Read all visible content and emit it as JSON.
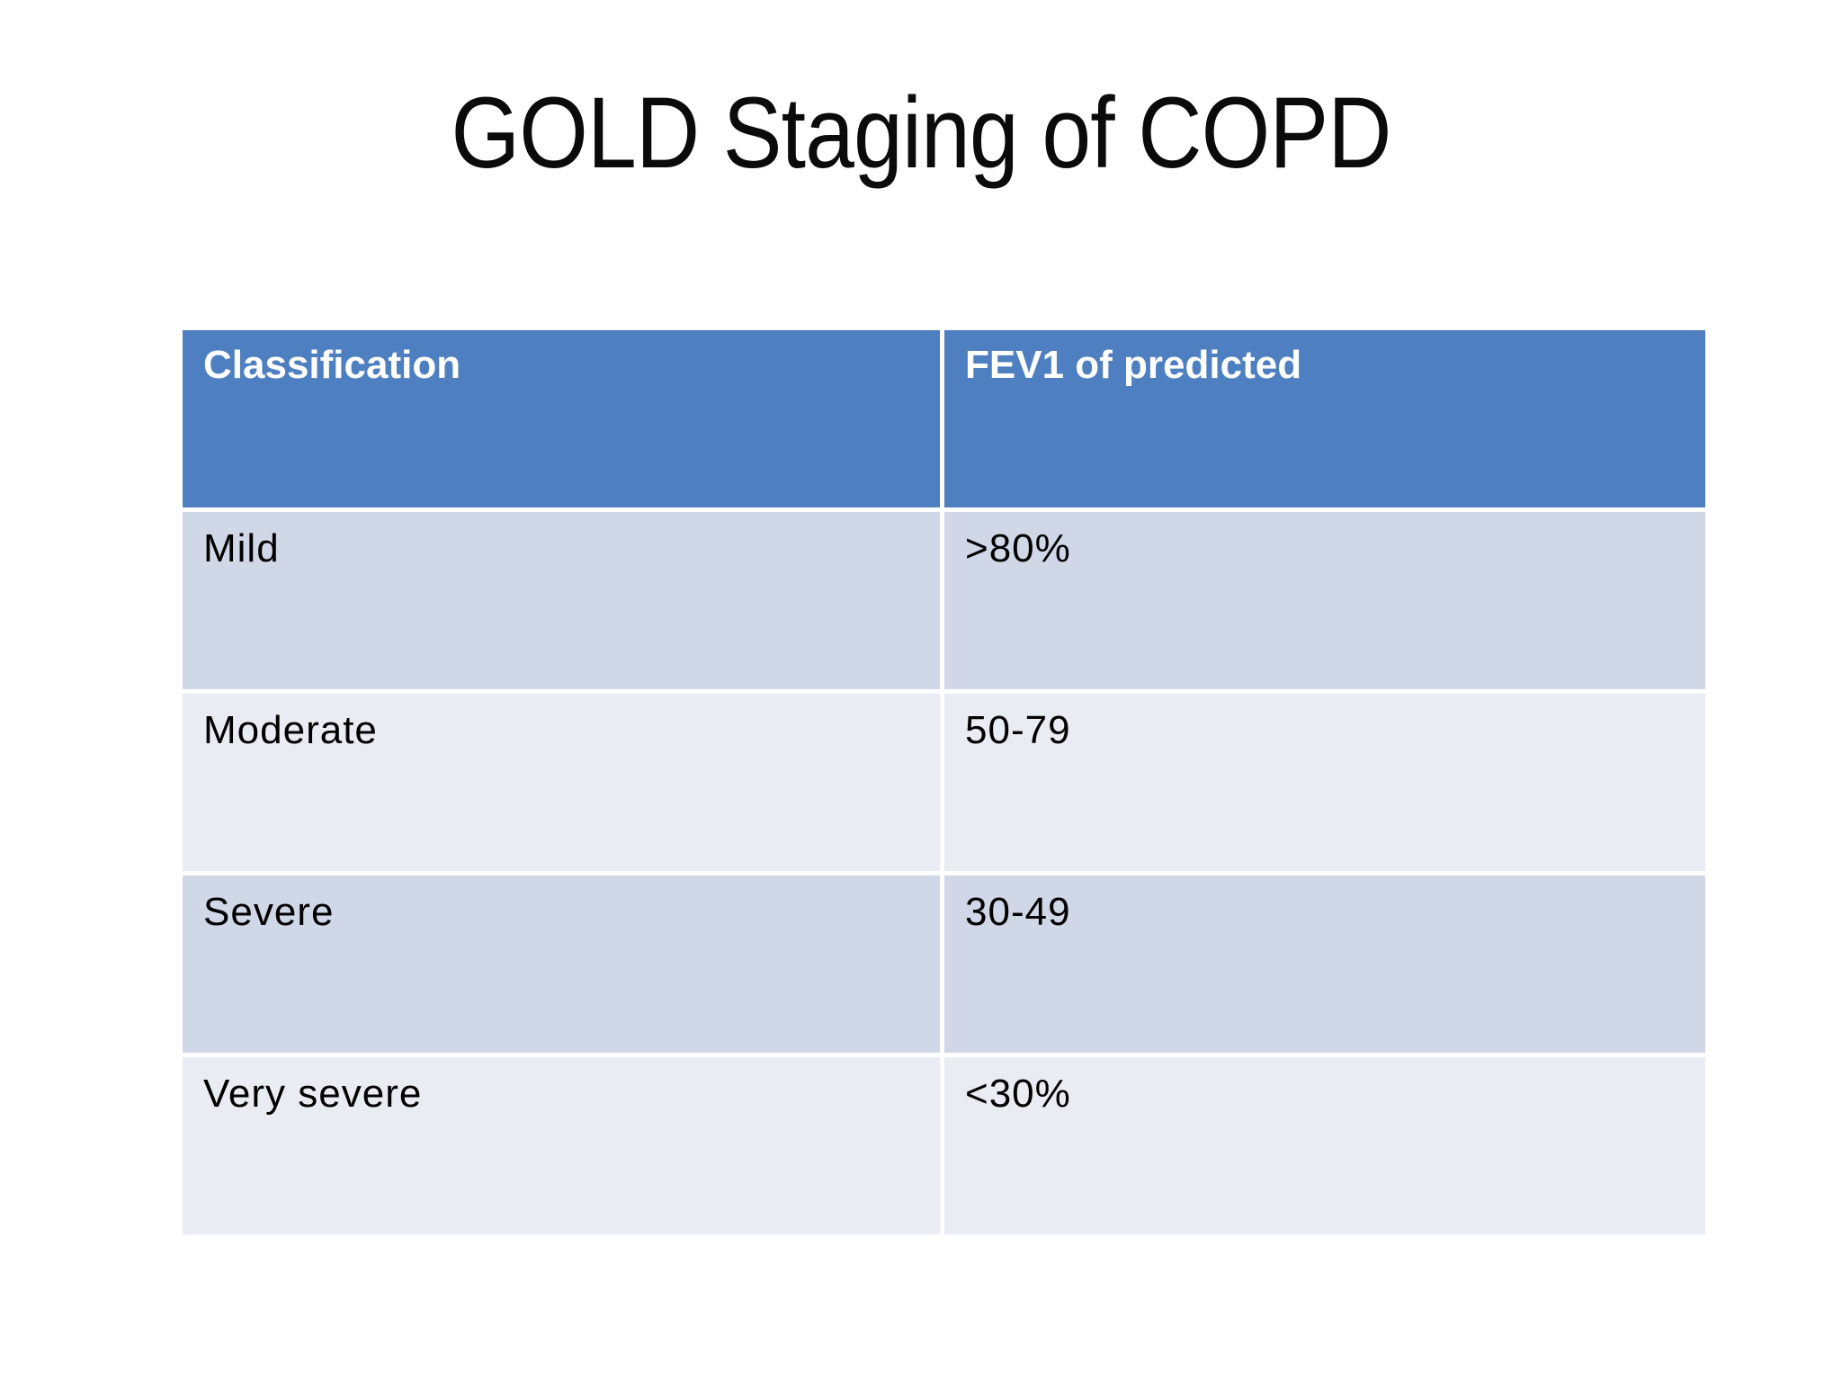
{
  "title": "GOLD Staging of COPD",
  "table": {
    "headers": [
      "Classification",
      "FEV1 of predicted"
    ],
    "rows": [
      [
        "Mild",
        ">80%"
      ],
      [
        "Moderate",
        "50-79"
      ],
      [
        "Severe",
        "30-49"
      ],
      [
        "Very severe",
        "<30%"
      ]
    ]
  },
  "colors": {
    "background": "#ffffff",
    "title_text": "#0b0b0b",
    "header_bg": "#4e7fc0",
    "header_text": "#ffffff",
    "row_band_dark": "#d0d7e7",
    "row_band_light": "#e9ecf3",
    "body_text": "#000000",
    "grid_line": "#ffffff"
  }
}
